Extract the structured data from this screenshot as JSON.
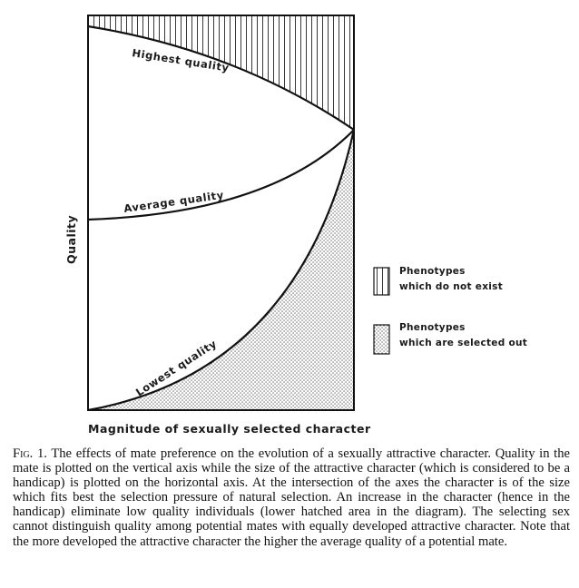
{
  "figure": {
    "y_axis_label": "Quality",
    "x_axis_label": "Magnitude of sexually selected character",
    "curves": [
      {
        "label": "Highest quality"
      },
      {
        "label": "Average quality"
      },
      {
        "label": "Lowest quality"
      }
    ],
    "legend": [
      {
        "pattern": "vertical-hatch",
        "line1": "Phenotypes",
        "line2": "which do not exist"
      },
      {
        "pattern": "dotted-stipple",
        "line1": "Phenotypes",
        "line2": "which are selected out"
      }
    ]
  },
  "caption": {
    "fig_label": "Fig. 1.",
    "text": "The effects of mate preference on the evolution of a sexually attractive character. Quality in the mate is plotted on the vertical axis while the size of the attractive character (which is considered to be a handicap) is plotted on the horizontal axis. At the intersection of the axes the character is of the size which fits best the selection pressure of natural selection. An increase in the character (hence in the handicap) eliminate low quality individuals (lower hatched area in the diagram). The selecting sex cannot distinguish quality among potential mates with equally developed attractive character. Note that the more developed the attractive character the higher the average quality of a potential mate."
  }
}
